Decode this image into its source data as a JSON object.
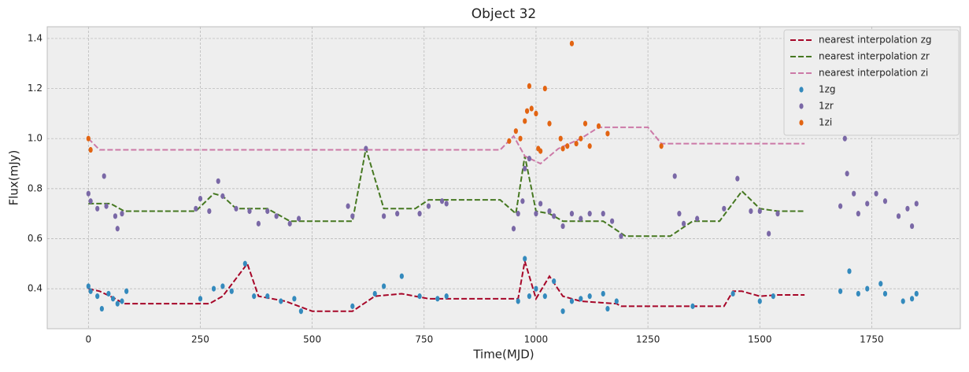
{
  "chart_data": {
    "type": "scatter",
    "title": "Object 32",
    "xlabel": "Time(MJD)",
    "ylabel": "Flux(mJy)",
    "xlim": [
      -92,
      1948
    ],
    "ylim": [
      0.24,
      1.447
    ],
    "xticks": [
      0,
      250,
      500,
      750,
      1000,
      1250,
      1500,
      1750
    ],
    "yticks": [
      0.4,
      0.6,
      0.8,
      {
        "value": 1,
        "label": "1.0"
      },
      1.2,
      1.4
    ],
    "grid": true,
    "legend": "upper right",
    "series": [
      {
        "name": "nearest interpolation zg",
        "style": "dashed",
        "color": "#a60628",
        "x": [
          0,
          25,
          60,
          80,
          270,
          300,
          355,
          380,
          440,
          500,
          590,
          640,
          700,
          760,
          960,
          975,
          1000,
          1030,
          1060,
          1100,
          1180,
          1190,
          1420,
          1440,
          1460,
          1500,
          1540,
          1600
        ],
        "values": [
          0.4,
          0.39,
          0.36,
          0.34,
          0.34,
          0.37,
          0.5,
          0.37,
          0.35,
          0.31,
          0.31,
          0.37,
          0.38,
          0.36,
          0.36,
          0.51,
          0.36,
          0.45,
          0.37,
          0.35,
          0.34,
          0.33,
          0.33,
          0.39,
          0.39,
          0.37,
          0.375,
          0.375
        ]
      },
      {
        "name": "nearest interpolation zr",
        "style": "dashed",
        "color": "#467821",
        "x": [
          0,
          50,
          80,
          240,
          280,
          300,
          330,
          400,
          450,
          560,
          590,
          620,
          660,
          730,
          760,
          920,
          955,
          975,
          1000,
          1030,
          1060,
          1150,
          1200,
          1300,
          1350,
          1410,
          1460,
          1500,
          1540,
          1600
        ],
        "values": [
          0.74,
          0.74,
          0.71,
          0.71,
          0.78,
          0.77,
          0.72,
          0.72,
          0.67,
          0.67,
          0.67,
          0.96,
          0.72,
          0.72,
          0.755,
          0.755,
          0.7,
          0.93,
          0.71,
          0.7,
          0.67,
          0.67,
          0.61,
          0.61,
          0.67,
          0.67,
          0.79,
          0.72,
          0.71,
          0.71
        ]
      },
      {
        "name": "nearest interpolation zi",
        "style": "dashed",
        "color": "#cc79a7",
        "x": [
          0,
          25,
          920,
          950,
          975,
          1010,
          1050,
          1100,
          1140,
          1250,
          1280,
          1600
        ],
        "values": [
          1.0,
          0.955,
          0.955,
          1.01,
          0.93,
          0.9,
          0.96,
          1.0,
          1.045,
          1.045,
          0.98,
          0.98
        ]
      },
      {
        "name": "1zg",
        "style": "points",
        "color": "#348abd",
        "x": [
          0,
          5,
          20,
          30,
          45,
          55,
          65,
          75,
          85,
          250,
          280,
          300,
          320,
          350,
          370,
          400,
          430,
          460,
          475,
          590,
          640,
          660,
          700,
          740,
          780,
          800,
          960,
          975,
          985,
          1000,
          1020,
          1040,
          1060,
          1080,
          1100,
          1120,
          1150,
          1160,
          1180,
          1350,
          1440,
          1500,
          1530,
          1680,
          1700,
          1720,
          1740,
          1770,
          1780,
          1820,
          1840,
          1850
        ],
        "values": [
          0.41,
          0.39,
          0.37,
          0.32,
          0.38,
          0.36,
          0.34,
          0.35,
          0.39,
          0.36,
          0.4,
          0.41,
          0.39,
          0.5,
          0.37,
          0.37,
          0.35,
          0.36,
          0.31,
          0.33,
          0.38,
          0.41,
          0.45,
          0.37,
          0.36,
          0.37,
          0.35,
          0.52,
          0.37,
          0.4,
          0.37,
          0.43,
          0.31,
          0.35,
          0.36,
          0.37,
          0.38,
          0.32,
          0.35,
          0.33,
          0.38,
          0.35,
          0.37,
          0.39,
          0.47,
          0.38,
          0.4,
          0.42,
          0.38,
          0.35,
          0.36,
          0.38
        ]
      },
      {
        "name": "1zr",
        "style": "points",
        "color": "#7a68a6",
        "x": [
          0,
          5,
          20,
          35,
          40,
          60,
          65,
          75,
          240,
          250,
          270,
          290,
          300,
          330,
          360,
          380,
          400,
          420,
          450,
          470,
          580,
          590,
          620,
          660,
          690,
          740,
          760,
          790,
          800,
          950,
          960,
          970,
          975,
          985,
          1000,
          1010,
          1030,
          1040,
          1060,
          1080,
          1100,
          1120,
          1150,
          1170,
          1190,
          1310,
          1320,
          1330,
          1360,
          1420,
          1450,
          1480,
          1500,
          1520,
          1540,
          1680,
          1690,
          1695,
          1710,
          1720,
          1740,
          1760,
          1780,
          1810,
          1830,
          1840,
          1850
        ],
        "values": [
          0.78,
          0.75,
          0.72,
          0.85,
          0.73,
          0.69,
          0.64,
          0.7,
          0.72,
          0.76,
          0.71,
          0.83,
          0.77,
          0.72,
          0.71,
          0.66,
          0.71,
          0.69,
          0.66,
          0.68,
          0.73,
          0.69,
          0.96,
          0.69,
          0.7,
          0.7,
          0.73,
          0.75,
          0.74,
          0.64,
          0.7,
          0.75,
          0.88,
          0.92,
          0.7,
          0.74,
          0.71,
          0.69,
          0.65,
          0.7,
          0.68,
          0.7,
          0.7,
          0.67,
          0.61,
          0.85,
          0.7,
          0.66,
          0.68,
          0.72,
          0.84,
          0.71,
          0.71,
          0.62,
          0.7,
          0.73,
          1.0,
          0.86,
          0.78,
          0.7,
          0.74,
          0.78,
          0.75,
          0.69,
          0.72,
          0.65,
          0.74
        ]
      },
      {
        "name": "1zi",
        "style": "points",
        "color": "#e26412",
        "x": [
          0,
          5,
          940,
          955,
          965,
          975,
          980,
          985,
          990,
          1000,
          1005,
          1010,
          1020,
          1030,
          1055,
          1060,
          1070,
          1080,
          1090,
          1100,
          1110,
          1120,
          1140,
          1160,
          1280
        ],
        "values": [
          1.0,
          0.955,
          0.99,
          1.03,
          1.0,
          1.07,
          1.11,
          1.21,
          1.12,
          1.1,
          0.96,
          0.95,
          1.2,
          1.06,
          1.0,
          0.96,
          0.97,
          1.38,
          0.98,
          1.0,
          1.06,
          0.97,
          1.05,
          1.02,
          0.97
        ]
      }
    ]
  }
}
